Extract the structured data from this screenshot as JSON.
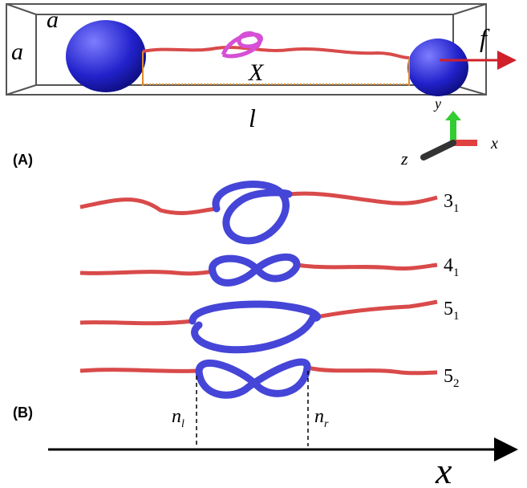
{
  "panel_a": {
    "label": "(A)",
    "box_side": "a",
    "box_height": "a",
    "force": "f",
    "extension": "X",
    "length": "l",
    "axes": {
      "y": "y",
      "x": "x",
      "z": "z"
    }
  },
  "panel_b": {
    "label": "(B)",
    "knots": [
      {
        "main": "3",
        "sub": "1"
      },
      {
        "main": "4",
        "sub": "1"
      },
      {
        "main": "5",
        "sub": "1"
      },
      {
        "main": "5",
        "sub": "2"
      }
    ],
    "left_end": {
      "main": "n",
      "sub": "l"
    },
    "right_end": {
      "main": "n",
      "sub": "r"
    },
    "axis": "x"
  }
}
